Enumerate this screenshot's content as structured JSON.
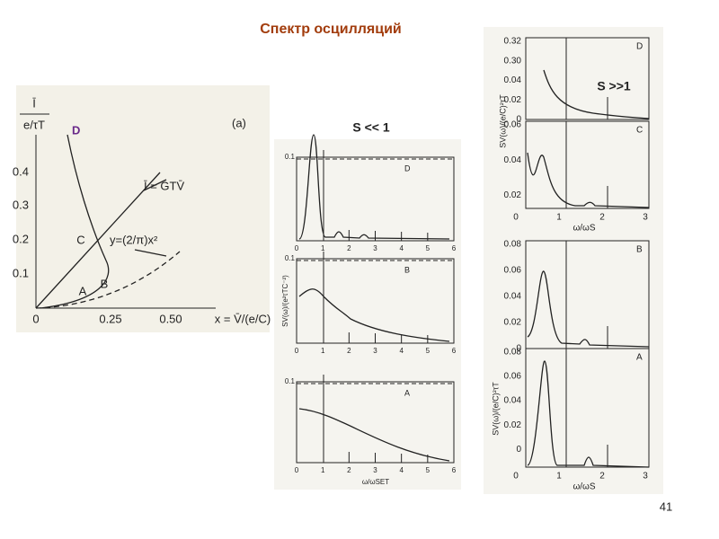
{
  "title": "Спектр осцилляций",
  "page_number": "41",
  "figure_left": {
    "y_label_top": "Ī",
    "y_label_bottom": "e/τT",
    "panel_tag": "(a)",
    "point_d": "D",
    "point_c": "C",
    "point_a": "A",
    "point_b": "B",
    "line_label": "Ī = GTV̄",
    "parabola_label": "y=(2/π)x²",
    "yticks": [
      "0.4",
      "0.3",
      "0.2",
      "0.1",
      "0"
    ],
    "xticks": [
      "0.25",
      "0.50"
    ],
    "x_label": "x = V̄/(e/C)"
  },
  "figure_middle": {
    "caption": "S << 1",
    "y_label": "SV(ω)/(e²τTC⁻²)",
    "x_label": "ω/ωSET",
    "panels": [
      {
        "label": "D",
        "ytick": "0.1",
        "xticks": [
          "0",
          "1",
          "2",
          "3",
          "4",
          "5",
          "6"
        ]
      },
      {
        "label": "B",
        "ytick": "0.1",
        "xticks": [
          "0",
          "1",
          "2",
          "3",
          "4",
          "5",
          "6"
        ]
      },
      {
        "label": "A",
        "ytick": "0.1",
        "xticks": [
          "0",
          "1",
          "2",
          "3",
          "4",
          "5",
          "6"
        ]
      }
    ]
  },
  "figure_right": {
    "caption": "S >>1",
    "y_label": "SV(ω)/(e/C)²τT",
    "x_label": "ω/ωS",
    "panels": [
      {
        "label": "D",
        "yticks": [
          "0.32",
          "0.30",
          "0.04",
          "0.02",
          "0"
        ]
      },
      {
        "label": "C",
        "yticks": [
          "0.06",
          "0.04",
          "0.02"
        ],
        "xticks": [
          "0",
          "1",
          "2",
          "3"
        ]
      },
      {
        "label": "B",
        "yticks": [
          "0.08",
          "0.06",
          "0.04",
          "0.02",
          "0"
        ]
      },
      {
        "label": "A",
        "yticks": [
          "0.08",
          "0.06",
          "0.04",
          "0.02",
          "0"
        ],
        "xticks": [
          "0",
          "1",
          "2",
          "3"
        ]
      }
    ]
  }
}
